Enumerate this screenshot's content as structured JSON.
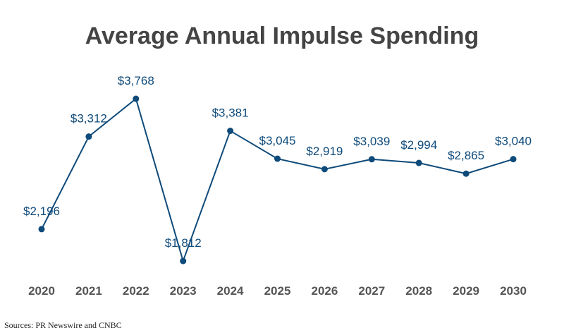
{
  "chart_data": {
    "type": "line",
    "title": "Average Annual Impulse Spending",
    "categories": [
      "2020",
      "2021",
      "2022",
      "2023",
      "2024",
      "2025",
      "2026",
      "2027",
      "2028",
      "2029",
      "2030"
    ],
    "values": [
      2196,
      3312,
      3768,
      1812,
      3381,
      3045,
      2919,
      3039,
      2994,
      2865,
      3040
    ],
    "data_labels": [
      "$2,196",
      "$3,312",
      "$3,768",
      "$1,812",
      "$3,381",
      "$3,045",
      "$2,919",
      "$3,039",
      "$2,994",
      "$2,865",
      "$3,040"
    ],
    "xlabel": "",
    "ylabel": "",
    "ylim": [
      1600,
      3900
    ],
    "grid": false,
    "y_axis_visible": false,
    "color": "#0e4a7a"
  },
  "source": "Sources: PR Newswire and CNBC"
}
